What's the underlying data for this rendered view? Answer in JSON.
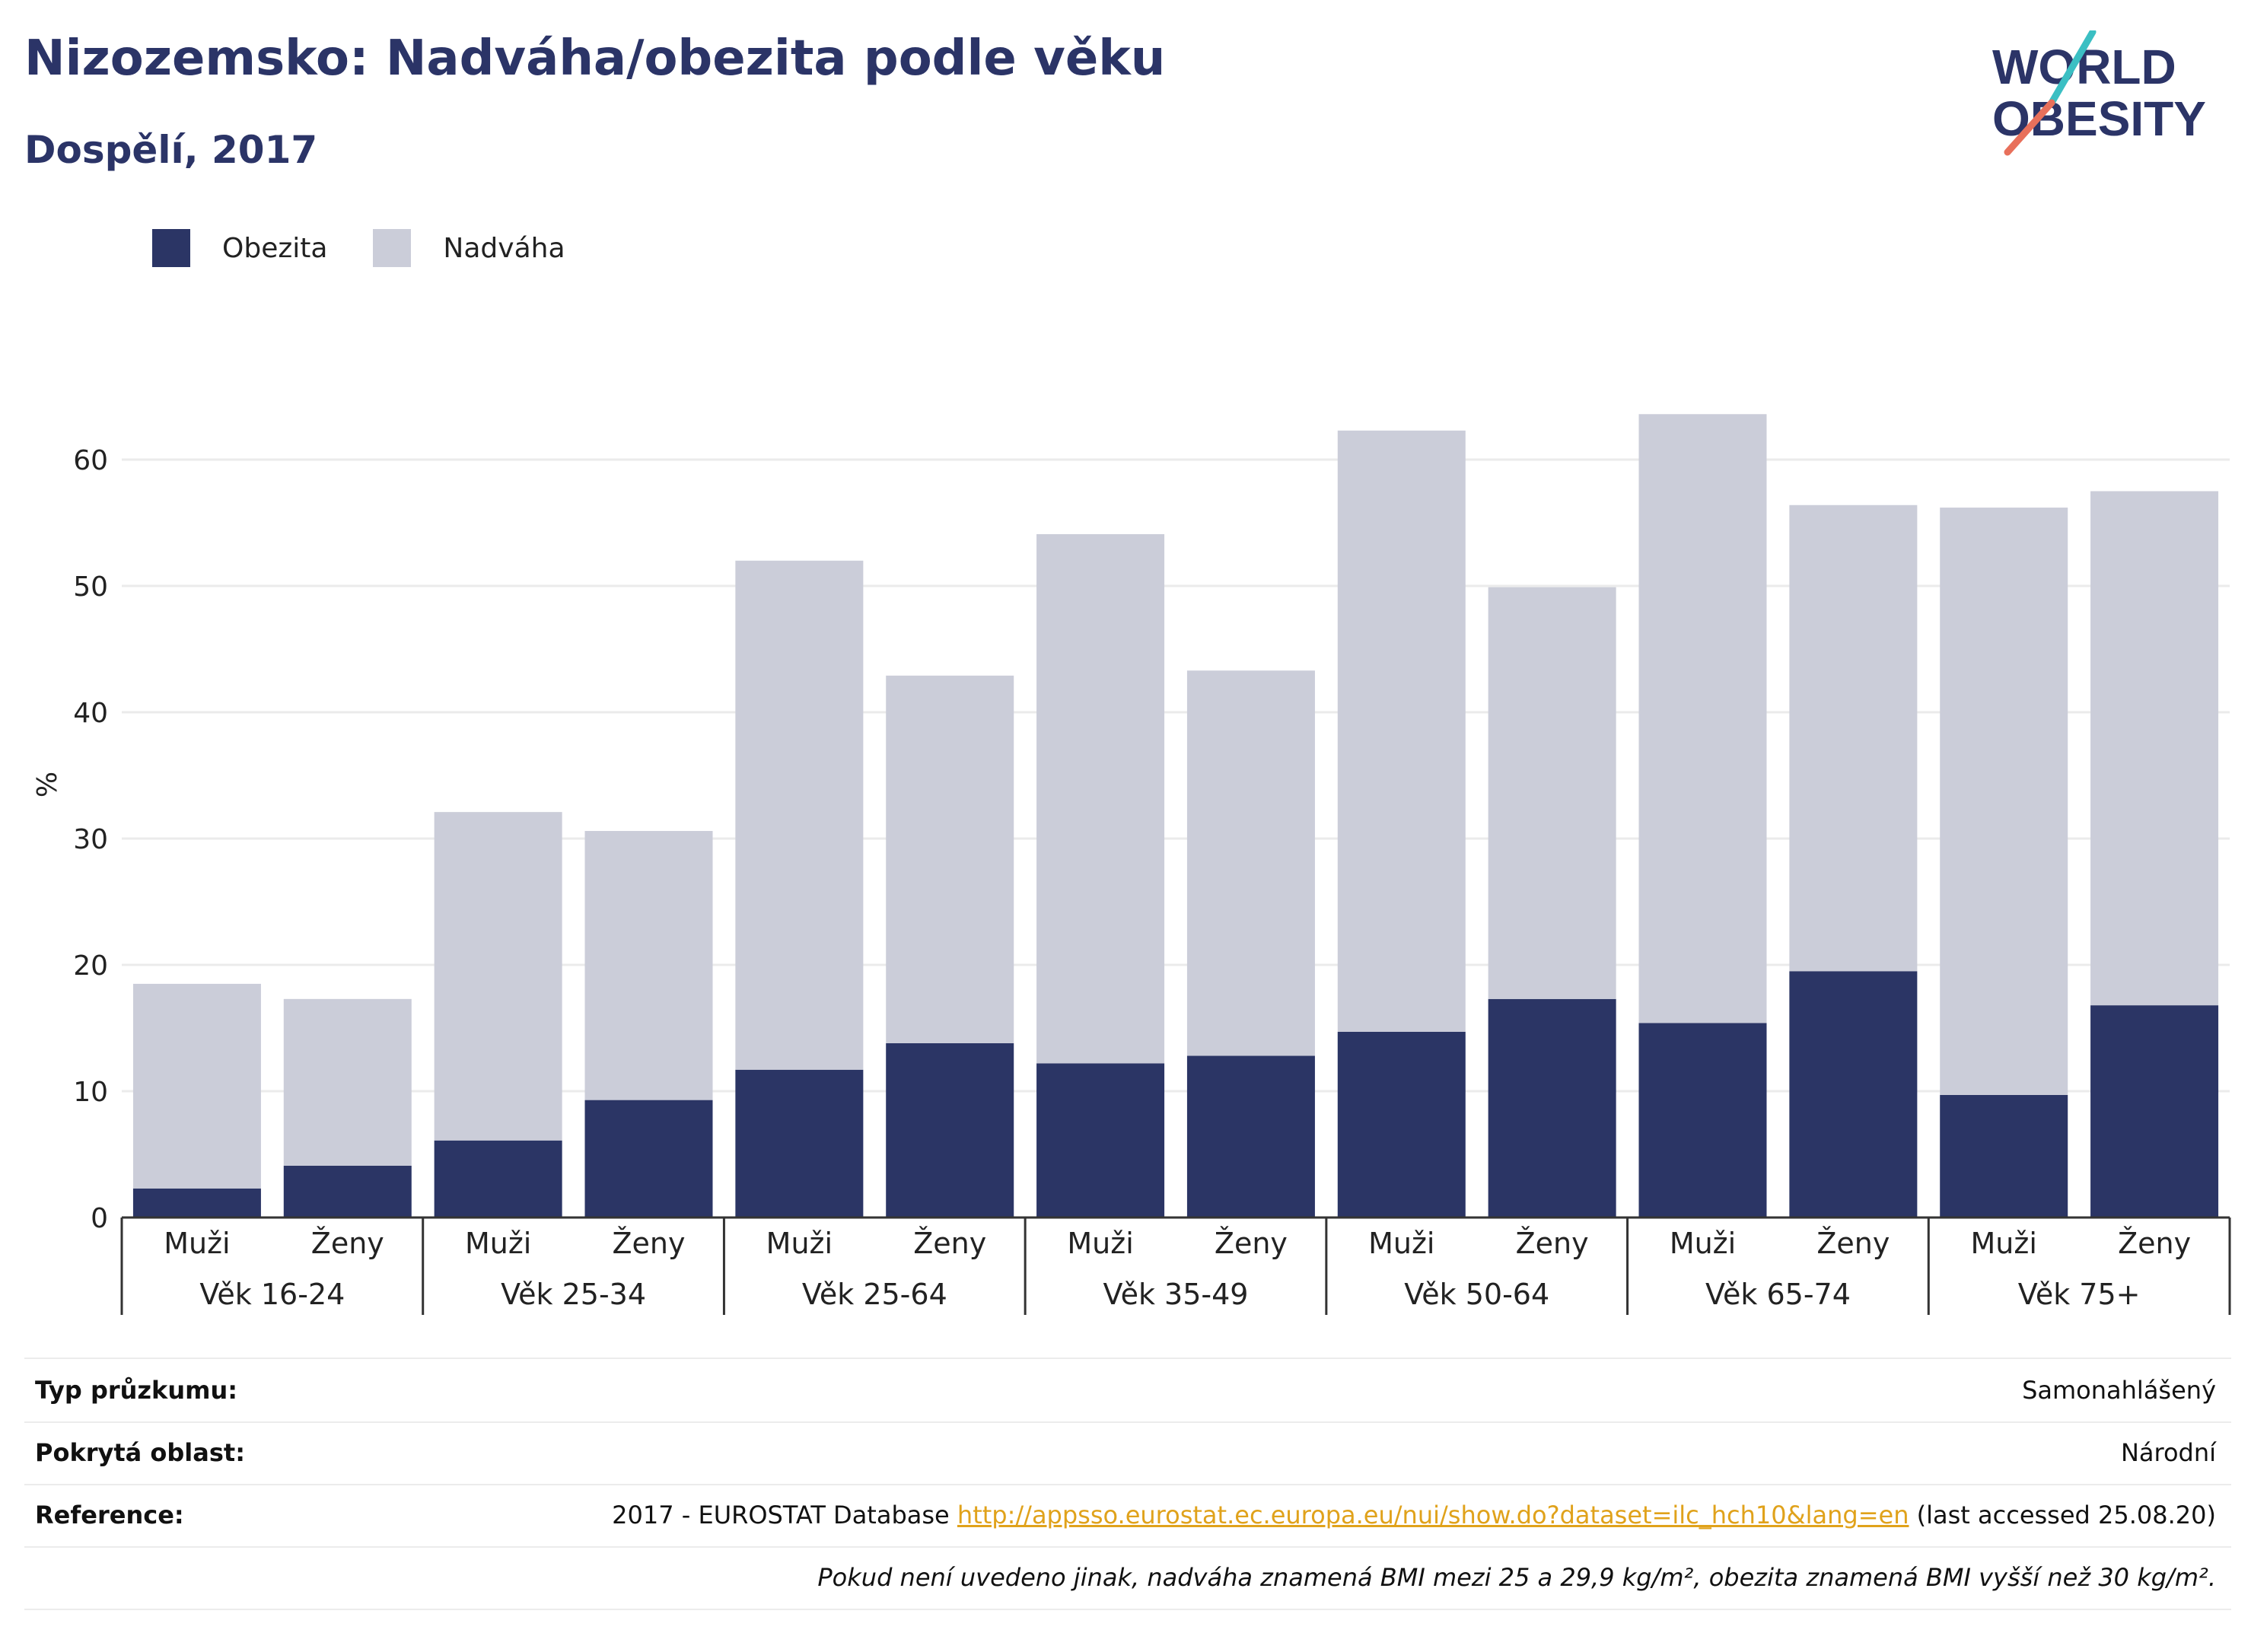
{
  "header": {
    "title": "Nizozemsko: Nadváha/obezita podle věku",
    "subtitle": "Dospělí, 2017"
  },
  "logo": {
    "line1": "WORLD",
    "line2": "OBESITY",
    "accent_colors": [
      "#3bbfc3",
      "#e8705b"
    ]
  },
  "legend": [
    {
      "name": "Obezita",
      "color": "#2b3565"
    },
    {
      "name": "Nadváha",
      "color": "#cbcdd9"
    }
  ],
  "chart_data": {
    "type": "bar",
    "stacked": true,
    "ylabel": "%",
    "ylim": [
      0,
      70
    ],
    "yticks": [
      0,
      10,
      20,
      30,
      40,
      50,
      60
    ],
    "grid": true,
    "legend_position": "top-left",
    "groups": [
      "Věk 16-24",
      "Věk 25-34",
      "Věk 25-64",
      "Věk 35-49",
      "Věk 50-64",
      "Věk 65-74",
      "Věk 75+"
    ],
    "sub_categories": [
      "Muži",
      "Ženy"
    ],
    "series": [
      {
        "name": "Obezita",
        "color": "#2b3565",
        "values": [
          2.3,
          4.1,
          6.1,
          9.3,
          11.7,
          13.8,
          12.2,
          12.8,
          14.7,
          17.3,
          15.4,
          19.5,
          9.7,
          16.8
        ]
      },
      {
        "name": "Nadváha",
        "color": "#cbcdd9",
        "values": [
          16.2,
          13.2,
          26.0,
          21.3,
          40.3,
          29.1,
          41.9,
          30.5,
          47.6,
          32.6,
          48.2,
          36.9,
          46.5,
          40.7
        ]
      }
    ]
  },
  "info": {
    "survey_label": "Typ průzkumu:",
    "survey_value": "Samonahlášený",
    "area_label": "Pokrytá oblast:",
    "area_value": "Národní",
    "reference_label": "Reference:",
    "reference_prefix": "2017 - EUROSTAT Database",
    "reference_link": "http://appsso.eurostat.ec.europa.eu/nui/show.do?dataset=ilc_hch10&lang=en",
    "reference_suffix": "(last accessed 25.08.20)",
    "note": "Pokud není uvedeno jinak, nadváha znamená BMI mezi 25 a 29,9 kg/m², obezita znamená BMI vyšší než 30 kg/m²."
  }
}
